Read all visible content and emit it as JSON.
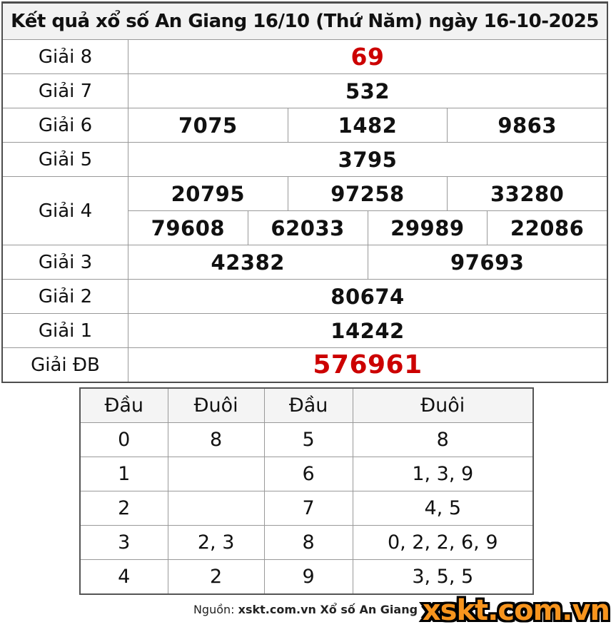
{
  "title": "Kết quả xổ số An Giang 16/10 (Thứ Năm) ngày 16-10-2025",
  "colors": {
    "highlight_red": "#cc0000",
    "logo_orange": "#f7941d",
    "title_bg": "#f2f2f2",
    "border_gray": "#999999"
  },
  "results": {
    "rows": [
      {
        "label": "Giải 8",
        "numbers": [
          "69"
        ]
      },
      {
        "label": "Giải 7",
        "numbers": [
          "532"
        ]
      },
      {
        "label": "Giải 6",
        "numbers": [
          "7075",
          "1482",
          "9863"
        ]
      },
      {
        "label": "Giải 5",
        "numbers": [
          "3795"
        ]
      },
      {
        "label": "Giải 4",
        "line1": [
          "20795",
          "97258",
          "33280"
        ],
        "line2": [
          "79608",
          "62033",
          "29989",
          "22086"
        ]
      },
      {
        "label": "Giải 3",
        "numbers": [
          "42382",
          "97693"
        ]
      },
      {
        "label": "Giải 2",
        "numbers": [
          "80674"
        ]
      },
      {
        "label": "Giải 1",
        "numbers": [
          "14242"
        ]
      },
      {
        "label": "Giải ĐB",
        "numbers": [
          "576961"
        ]
      }
    ]
  },
  "head_tail": {
    "headers": [
      "Đầu",
      "Đuôi",
      "Đầu",
      "Đuôi"
    ],
    "rows": [
      [
        "0",
        "8",
        "5",
        "8"
      ],
      [
        "1",
        "",
        "6",
        "1, 3, 9"
      ],
      [
        "2",
        "",
        "7",
        "4, 5"
      ],
      [
        "3",
        "2, 3",
        "8",
        "0, 2, 2, 6, 9"
      ],
      [
        "4",
        "2",
        "9",
        "3, 5, 5"
      ]
    ]
  },
  "footer": {
    "source_label": "Nguồn:",
    "source_value": "xskt.com.vn Xổ số An Giang",
    "logo_text": "xskt.com.vn"
  }
}
